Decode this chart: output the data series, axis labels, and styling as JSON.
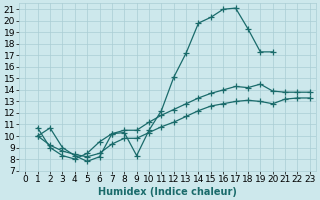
{
  "xlabel": "Humidex (Indice chaleur)",
  "bg_color": "#cde8ec",
  "line_color": "#1a6b6b",
  "grid_color": "#aacdd4",
  "xlim": [
    -0.5,
    23.5
  ],
  "ylim": [
    7,
    21.5
  ],
  "xtick_labels": [
    "0",
    "1",
    "2",
    "3",
    "4",
    "5",
    "6",
    "7",
    "8",
    "9",
    "10",
    "11",
    "12",
    "13",
    "14",
    "15",
    "16",
    "17",
    "18",
    "19",
    "20",
    "21",
    "22",
    "23"
  ],
  "xtick_vals": [
    0,
    1,
    2,
    3,
    4,
    5,
    6,
    7,
    8,
    9,
    10,
    11,
    12,
    13,
    14,
    15,
    16,
    17,
    18,
    19,
    20,
    21,
    22,
    23
  ],
  "ytick_vals": [
    7,
    8,
    9,
    10,
    11,
    12,
    13,
    14,
    15,
    16,
    17,
    18,
    19,
    20,
    21
  ],
  "line1_x": [
    1,
    2,
    3,
    4,
    5,
    6,
    7,
    8,
    9,
    10,
    11,
    12,
    13,
    14,
    15,
    16,
    17,
    18,
    19,
    20
  ],
  "line1_y": [
    10,
    10.7,
    9.0,
    8.3,
    7.8,
    8.2,
    10.2,
    10.3,
    8.3,
    10.5,
    12.2,
    15.1,
    17.2,
    19.8,
    20.3,
    21.0,
    21.1,
    19.3,
    17.3,
    17.3
  ],
  "line2_x": [
    1,
    2,
    3,
    4,
    5,
    6,
    7,
    8,
    9,
    10,
    11,
    12,
    13,
    14,
    15,
    16,
    17,
    18,
    19,
    20,
    21,
    22,
    23
  ],
  "line2_y": [
    10.7,
    9.0,
    8.3,
    8.0,
    8.5,
    9.5,
    10.2,
    10.5,
    10.5,
    11.2,
    11.8,
    12.3,
    12.8,
    13.3,
    13.7,
    14.0,
    14.3,
    14.2,
    14.5,
    13.9,
    13.8,
    13.8,
    13.8
  ],
  "line3_x": [
    1,
    2,
    3,
    4,
    5,
    6,
    7,
    8,
    9,
    10,
    11,
    12,
    13,
    14,
    15,
    16,
    17,
    18,
    19,
    20,
    21,
    22,
    23
  ],
  "line3_y": [
    10.0,
    9.2,
    8.7,
    8.4,
    8.2,
    8.5,
    9.3,
    9.8,
    9.8,
    10.3,
    10.8,
    11.2,
    11.7,
    12.2,
    12.6,
    12.8,
    13.0,
    13.1,
    13.0,
    12.8,
    13.2,
    13.3,
    13.3
  ],
  "markersize": 4,
  "linewidth": 0.9,
  "tick_fontsize": 6.5
}
